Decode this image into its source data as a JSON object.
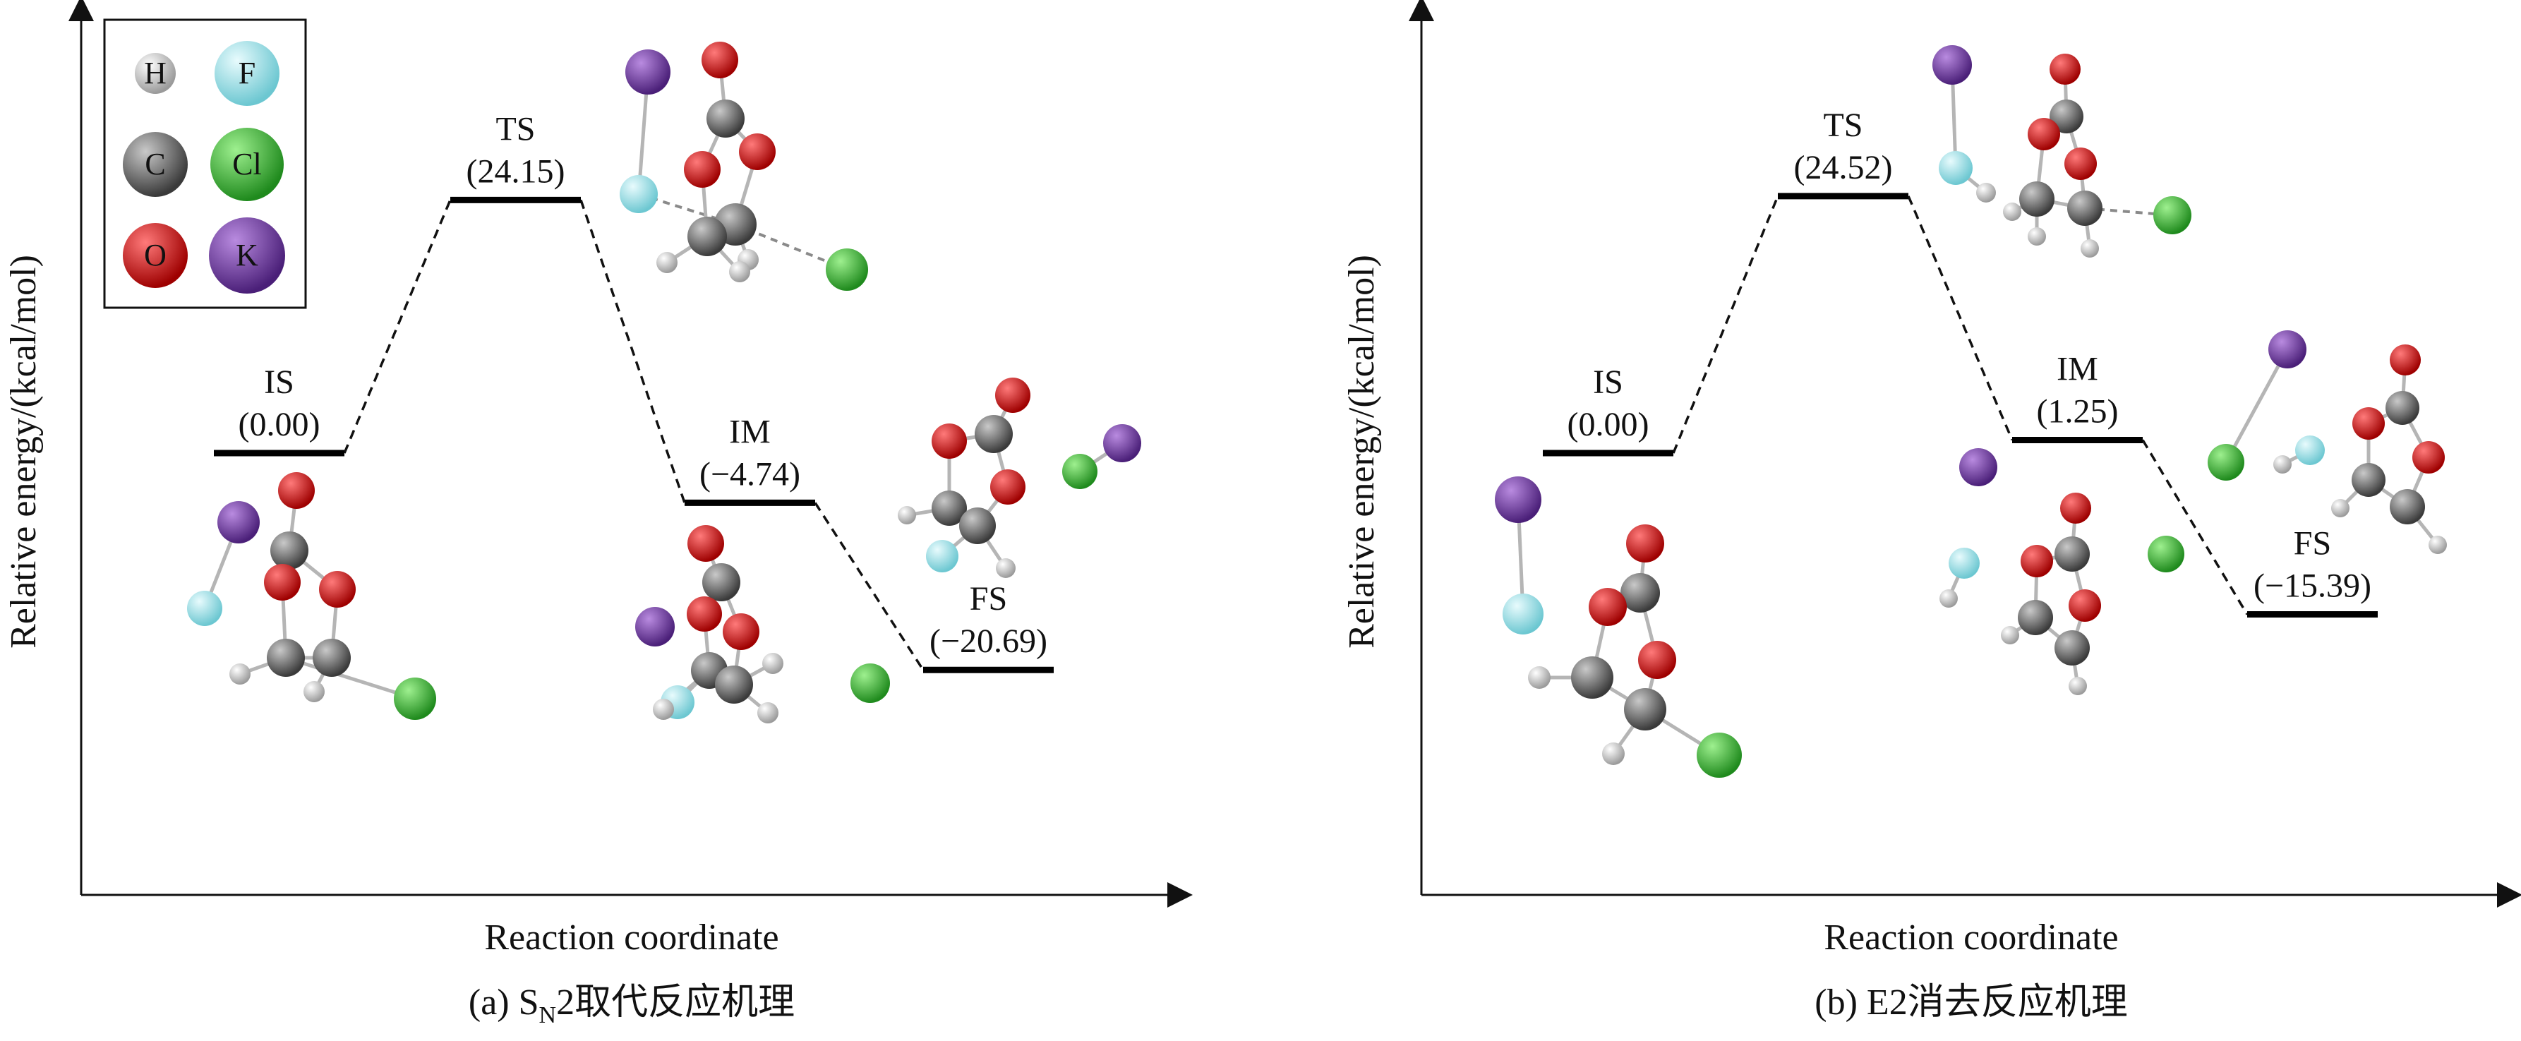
{
  "legend": [
    {
      "symbol": "H",
      "color": "#eeeeee"
    },
    {
      "symbol": "F",
      "color": "#a8e6ec"
    },
    {
      "symbol": "C",
      "color": "#6f6f6f"
    },
    {
      "symbol": "Cl",
      "color": "#3fb83a"
    },
    {
      "symbol": "O",
      "color": "#e01515"
    },
    {
      "symbol": "K",
      "color": "#7a3ea8"
    }
  ],
  "chart_data": [
    {
      "type": "line",
      "caption": {
        "prefix": "(a) S",
        "sub": "N",
        "suffix": "2取代反应机理"
      },
      "xlabel": "Reaction coordinate",
      "ylabel": "Relative energy/(kcal/mol)",
      "states": [
        {
          "name": "IS",
          "value_label": "(0.00)",
          "value": 0.0
        },
        {
          "name": "TS",
          "value_label": "(24.15)",
          "value": 24.15
        },
        {
          "name": "IM",
          "value_label": "(−4.74)",
          "value": -4.74
        },
        {
          "name": "FS",
          "value_label": "(−20.69)",
          "value": -20.69
        }
      ]
    },
    {
      "type": "line",
      "caption": {
        "prefix": "(b) E2消去反应机理",
        "sub": "",
        "suffix": ""
      },
      "xlabel": "Reaction coordinate",
      "ylabel": "Relative energy/(kcal/mol)",
      "states": [
        {
          "name": "IS",
          "value_label": "(0.00)",
          "value": 0.0
        },
        {
          "name": "TS",
          "value_label": "(24.52)",
          "value": 24.52
        },
        {
          "name": "IM",
          "value_label": "(1.25)",
          "value": 1.25
        },
        {
          "name": "FS",
          "value_label": "(−15.39)",
          "value": -15.39
        }
      ]
    }
  ]
}
